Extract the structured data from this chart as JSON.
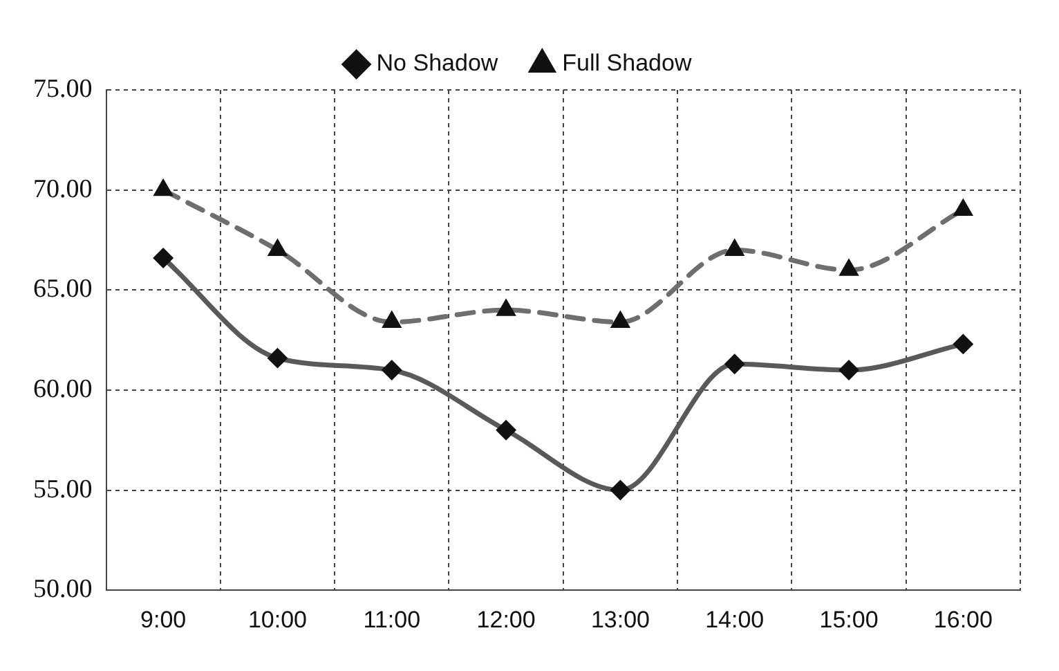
{
  "chart_data": {
    "type": "line",
    "categories": [
      "9:00",
      "10:00",
      "11:00",
      "12:00",
      "13:00",
      "14:00",
      "15:00",
      "16:00"
    ],
    "series": [
      {
        "name": "No Shadow",
        "color": "#595959",
        "values": [
          66.6,
          61.6,
          61.0,
          58.0,
          55.0,
          61.3,
          61.0,
          62.3
        ],
        "marker": "diamond",
        "line_style": "solid"
      },
      {
        "name": "Full Shadow",
        "color": "#6e6e6e",
        "values": [
          70.0,
          67.0,
          63.4,
          64.0,
          63.4,
          67.0,
          66.0,
          69.0
        ],
        "marker": "triangle",
        "line_style": "dashed"
      }
    ],
    "ylim": [
      50,
      75
    ],
    "yticks": [
      {
        "value": 50,
        "label": "50.00"
      },
      {
        "value": 55,
        "label": "55.00"
      },
      {
        "value": 60,
        "label": "60.00"
      },
      {
        "value": 65,
        "label": "65.00"
      },
      {
        "value": 70,
        "label": "70.00"
      },
      {
        "value": 75,
        "label": "75.00"
      }
    ],
    "grid": true,
    "legend": "top"
  }
}
